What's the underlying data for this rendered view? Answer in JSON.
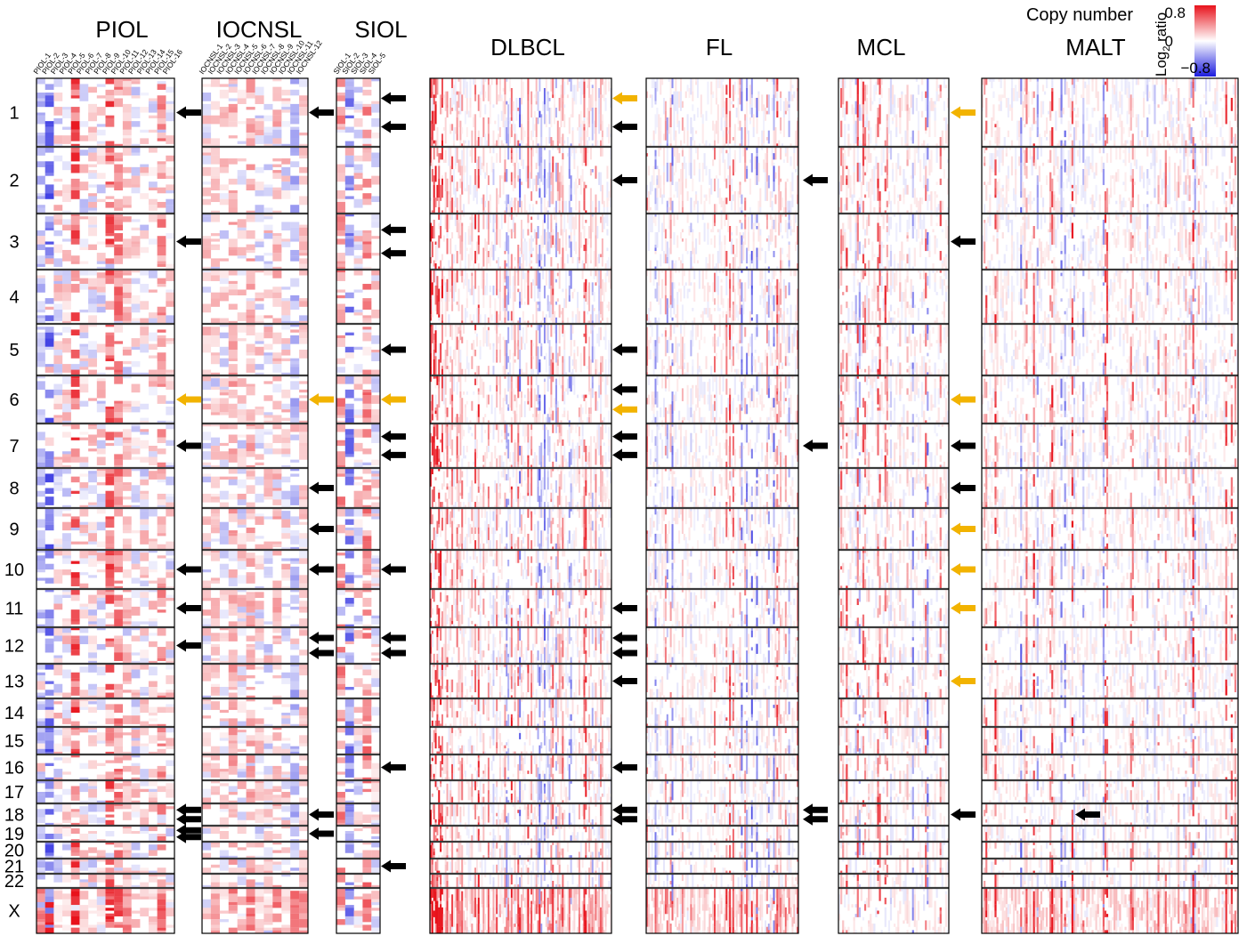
{
  "chart_data": {
    "type": "heatmap",
    "title": "Copy number",
    "colorbar": {
      "label_main": "Log",
      "label_sub": "2",
      "label_rest": " ratio",
      "ticks": [
        "0.8",
        "0",
        "−0.8"
      ],
      "range": [
        -0.8,
        0.8
      ],
      "colors": {
        "gain": "#e8121b",
        "neutral": "#ffffff",
        "loss": "#1c1cde"
      }
    },
    "chromosomes": [
      "1",
      "2",
      "3",
      "4",
      "5",
      "6",
      "7",
      "8",
      "9",
      "10",
      "11",
      "12",
      "13",
      "14",
      "15",
      "16",
      "17",
      "18",
      "19",
      "20",
      "21",
      "22",
      "X"
    ],
    "arrow_legend": {
      "black": "#000000",
      "yellow": "#f2b300"
    },
    "panels": [
      {
        "name": "PIOL",
        "samples": [
          "PIOL-1",
          "PIOL-2",
          "PIOL-3",
          "PIOL-4",
          "PIOL-5",
          "PIOL-6",
          "PIOL-7",
          "PIOL-8",
          "PIOL-9",
          "PIOL-10",
          "PIOL-11",
          "PIOL-12",
          "PIOL-13",
          "PIOL-14",
          "PIOL-15",
          "PIOL-16"
        ],
        "n_cols": 16,
        "arrows": [
          {
            "chr": "1",
            "color": "black"
          },
          {
            "chr": "3",
            "color": "black"
          },
          {
            "chr": "6",
            "color": "yellow"
          },
          {
            "chr": "7",
            "color": "black"
          },
          {
            "chr": "10",
            "color": "black"
          },
          {
            "chr": "11",
            "color": "black"
          },
          {
            "chr": "12",
            "color": "black"
          },
          {
            "chr": "18",
            "color": "black"
          },
          {
            "chr": "18",
            "color": "black"
          },
          {
            "chr": "19",
            "color": "black"
          },
          {
            "chr": "19",
            "color": "black"
          }
        ]
      },
      {
        "name": "IOCNSL",
        "samples": [
          "IOCNSL-1",
          "IOCNSL-2",
          "IOCNSL-3",
          "IOCNSL-4",
          "IOCNSL-5",
          "IOCNSL-6",
          "IOCNSL-7",
          "IOCNSL-8",
          "IOCNSL-9",
          "IOCNSL-10",
          "IOCNSL-11",
          "IOCNSL-12"
        ],
        "n_cols": 12,
        "arrows": [
          {
            "chr": "1",
            "color": "black"
          },
          {
            "chr": "6",
            "color": "yellow"
          },
          {
            "chr": "8",
            "color": "black"
          },
          {
            "chr": "9",
            "color": "black"
          },
          {
            "chr": "10",
            "color": "black"
          },
          {
            "chr": "12",
            "color": "black"
          },
          {
            "chr": "12",
            "color": "black"
          },
          {
            "chr": "18",
            "color": "black"
          },
          {
            "chr": "19",
            "color": "black"
          }
        ]
      },
      {
        "name": "SIOL",
        "samples": [
          "SIOL-1",
          "SIOL-2",
          "SIOL-3",
          "SIOL-4",
          "SIOL-5"
        ],
        "n_cols": 5,
        "arrows": [
          {
            "chr": "1",
            "color": "black"
          },
          {
            "chr": "1",
            "color": "black"
          },
          {
            "chr": "3",
            "color": "black"
          },
          {
            "chr": "3",
            "color": "black"
          },
          {
            "chr": "5",
            "color": "black"
          },
          {
            "chr": "6",
            "color": "yellow"
          },
          {
            "chr": "7",
            "color": "black"
          },
          {
            "chr": "7",
            "color": "black"
          },
          {
            "chr": "10",
            "color": "black"
          },
          {
            "chr": "12",
            "color": "black"
          },
          {
            "chr": "12",
            "color": "black"
          },
          {
            "chr": "16",
            "color": "black"
          },
          {
            "chr": "21",
            "color": "black"
          }
        ]
      },
      {
        "name": "DLBCL",
        "samples": [],
        "n_cols": 110,
        "arrows": [
          {
            "chr": "1",
            "color": "yellow"
          },
          {
            "chr": "1",
            "color": "black"
          },
          {
            "chr": "2",
            "color": "black"
          },
          {
            "chr": "5",
            "color": "black"
          },
          {
            "chr": "6",
            "color": "black"
          },
          {
            "chr": "6",
            "color": "yellow"
          },
          {
            "chr": "7",
            "color": "black"
          },
          {
            "chr": "7",
            "color": "black"
          },
          {
            "chr": "11",
            "color": "black"
          },
          {
            "chr": "12",
            "color": "black"
          },
          {
            "chr": "12",
            "color": "black"
          },
          {
            "chr": "13",
            "color": "black"
          },
          {
            "chr": "16",
            "color": "black"
          },
          {
            "chr": "18",
            "color": "black"
          },
          {
            "chr": "18",
            "color": "black"
          }
        ]
      },
      {
        "name": "FL",
        "samples": [],
        "n_cols": 90,
        "arrows": [
          {
            "chr": "2",
            "color": "black"
          },
          {
            "chr": "7",
            "color": "black"
          },
          {
            "chr": "18",
            "color": "black"
          },
          {
            "chr": "18",
            "color": "black"
          }
        ]
      },
      {
        "name": "MCL",
        "samples": [],
        "n_cols": 60,
        "arrows": [
          {
            "chr": "1",
            "color": "yellow"
          },
          {
            "chr": "3",
            "color": "black"
          },
          {
            "chr": "6",
            "color": "yellow"
          },
          {
            "chr": "7",
            "color": "black"
          },
          {
            "chr": "8",
            "color": "black"
          },
          {
            "chr": "9",
            "color": "yellow"
          },
          {
            "chr": "10",
            "color": "yellow"
          },
          {
            "chr": "11",
            "color": "yellow"
          },
          {
            "chr": "13",
            "color": "yellow"
          },
          {
            "chr": "18",
            "color": "black"
          }
        ]
      },
      {
        "name": "MALT",
        "samples": [],
        "n_cols": 140,
        "arrows": [
          {
            "chr": "18",
            "color": "black"
          }
        ]
      }
    ]
  }
}
